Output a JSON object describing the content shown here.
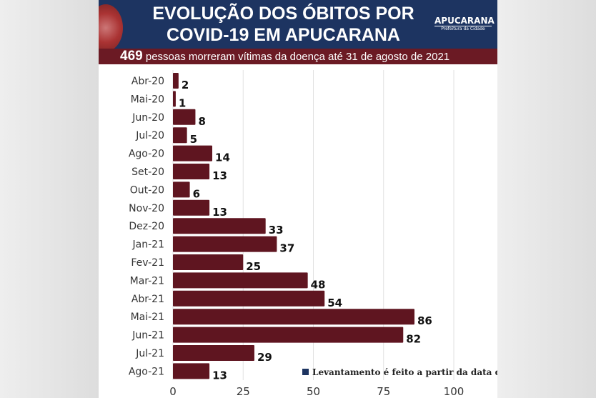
{
  "header": {
    "title_line1": "EVOLUÇÃO DOS ÓBITOS POR",
    "title_line2": "COVID-19 EM APUCARANA",
    "logo_name": "APUCARANA",
    "logo_sub": "Prefeitura da Cidade",
    "total": "469",
    "subtitle": "pessoas morreram vítimas da doença até 31 de agosto de 2021"
  },
  "note": "Levantamento é feito a partir da data do óbito",
  "colors": {
    "bar": "#5f1520",
    "header": "#1d3461",
    "subtitle_bar": "#6b1a24"
  },
  "chart_data": {
    "type": "bar",
    "orientation": "horizontal",
    "categories": [
      "Abr-20",
      "Mai-20",
      "Jun-20",
      "Jul-20",
      "Ago-20",
      "Set-20",
      "Out-20",
      "Nov-20",
      "Dez-20",
      "Jan-21",
      "Fev-21",
      "Mar-21",
      "Abr-21",
      "Mai-21",
      "Jun-21",
      "Jul-21",
      "Ago-21"
    ],
    "values": [
      2,
      1,
      8,
      5,
      14,
      13,
      6,
      13,
      33,
      37,
      25,
      48,
      54,
      86,
      82,
      29,
      13
    ],
    "xlim": [
      0,
      110
    ],
    "xticks": [
      0,
      25,
      50,
      75,
      100
    ],
    "grid": true
  }
}
